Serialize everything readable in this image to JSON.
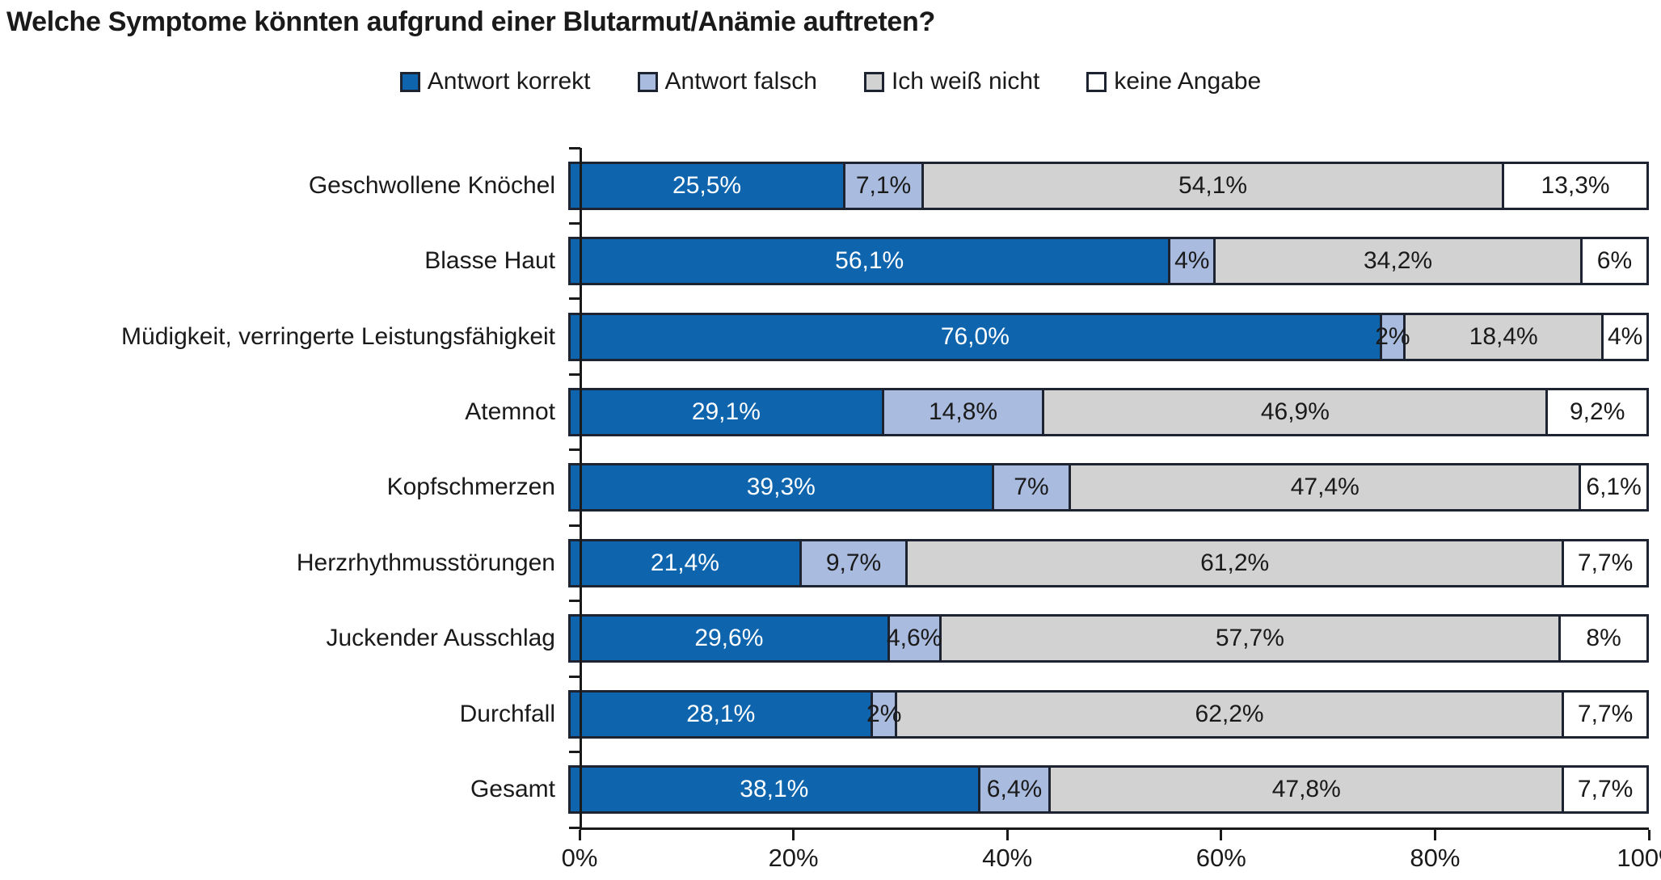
{
  "title": "Welche Symptome könnten aufgrund einer Blutarmut/Anämie auftreten?",
  "colors": {
    "correct": "#0e65ad",
    "wrong": "#a9bbde",
    "dont_know": "#d2d2d2",
    "no_answer": "#ffffff",
    "border": "#1d2330",
    "text": "#1a1a1a"
  },
  "legend": [
    {
      "label": "Antwort korrekt",
      "color": "#0e65ad"
    },
    {
      "label": "Antwort falsch",
      "color": "#a9bbde"
    },
    {
      "label": "Ich weiß nicht",
      "color": "#d2d2d2"
    },
    {
      "label": "keine Angabe",
      "color": "#ffffff"
    }
  ],
  "chart_data": {
    "type": "bar",
    "orientation": "horizontal",
    "stacked": true,
    "title": "Welche Symptome könnten aufgrund einer Blutarmut/Anämie auftreten?",
    "categories": [
      "Geschwollene Knöchel",
      "Blasse Haut",
      "Müdigkeit, verringerte Leistungsfähigkeit",
      "Atemnot",
      "Kopfschmerzen",
      "Herzrhythmusstörungen",
      "Juckender Ausschlag",
      "Durchfall",
      "Gesamt"
    ],
    "series": [
      {
        "name": "Antwort korrekt",
        "color": "#0e65ad",
        "text_color": "#ffffff",
        "values": [
          25.5,
          56.1,
          76.0,
          29.1,
          39.3,
          21.4,
          29.6,
          28.1,
          38.1
        ],
        "labels": [
          "25,5%",
          "56,1%",
          "76,0%",
          "29,1%",
          "39,3%",
          "21,4%",
          "29,6%",
          "28,1%",
          "38,1%"
        ]
      },
      {
        "name": "Antwort falsch",
        "color": "#a9bbde",
        "text_color": "#1a1a1a",
        "values": [
          7.1,
          4,
          2,
          14.8,
          7,
          9.7,
          4.6,
          2,
          6.4
        ],
        "labels": [
          "7,1%",
          "4%",
          "2%",
          "14,8%",
          "7%",
          "9,7%",
          "4,6%",
          "2%",
          "6,4%"
        ]
      },
      {
        "name": "Ich weiß nicht",
        "color": "#d2d2d2",
        "text_color": "#1a1a1a",
        "values": [
          54.1,
          34.2,
          18.4,
          46.9,
          47.4,
          61.2,
          57.7,
          62.2,
          47.8
        ],
        "labels": [
          "54,1%",
          "34,2%",
          "18,4%",
          "46,9%",
          "47,4%",
          "61,2%",
          "57,7%",
          "62,2%",
          "47,8%"
        ]
      },
      {
        "name": "keine Angabe",
        "color": "#ffffff",
        "text_color": "#1a1a1a",
        "values": [
          13.3,
          6,
          4,
          9.2,
          6.1,
          7.7,
          8,
          7.7,
          7.7
        ],
        "labels": [
          "13,3%",
          "6%",
          "4%",
          "9,2%",
          "6,1%",
          "7,7%",
          "8%",
          "7,7%",
          "7,7%"
        ]
      }
    ],
    "x_ticks": [
      "0%",
      "20%",
      "40%",
      "60%",
      "80%",
      "100%"
    ],
    "xlim": [
      0,
      100
    ],
    "grid": false,
    "legend_position": "top"
  }
}
